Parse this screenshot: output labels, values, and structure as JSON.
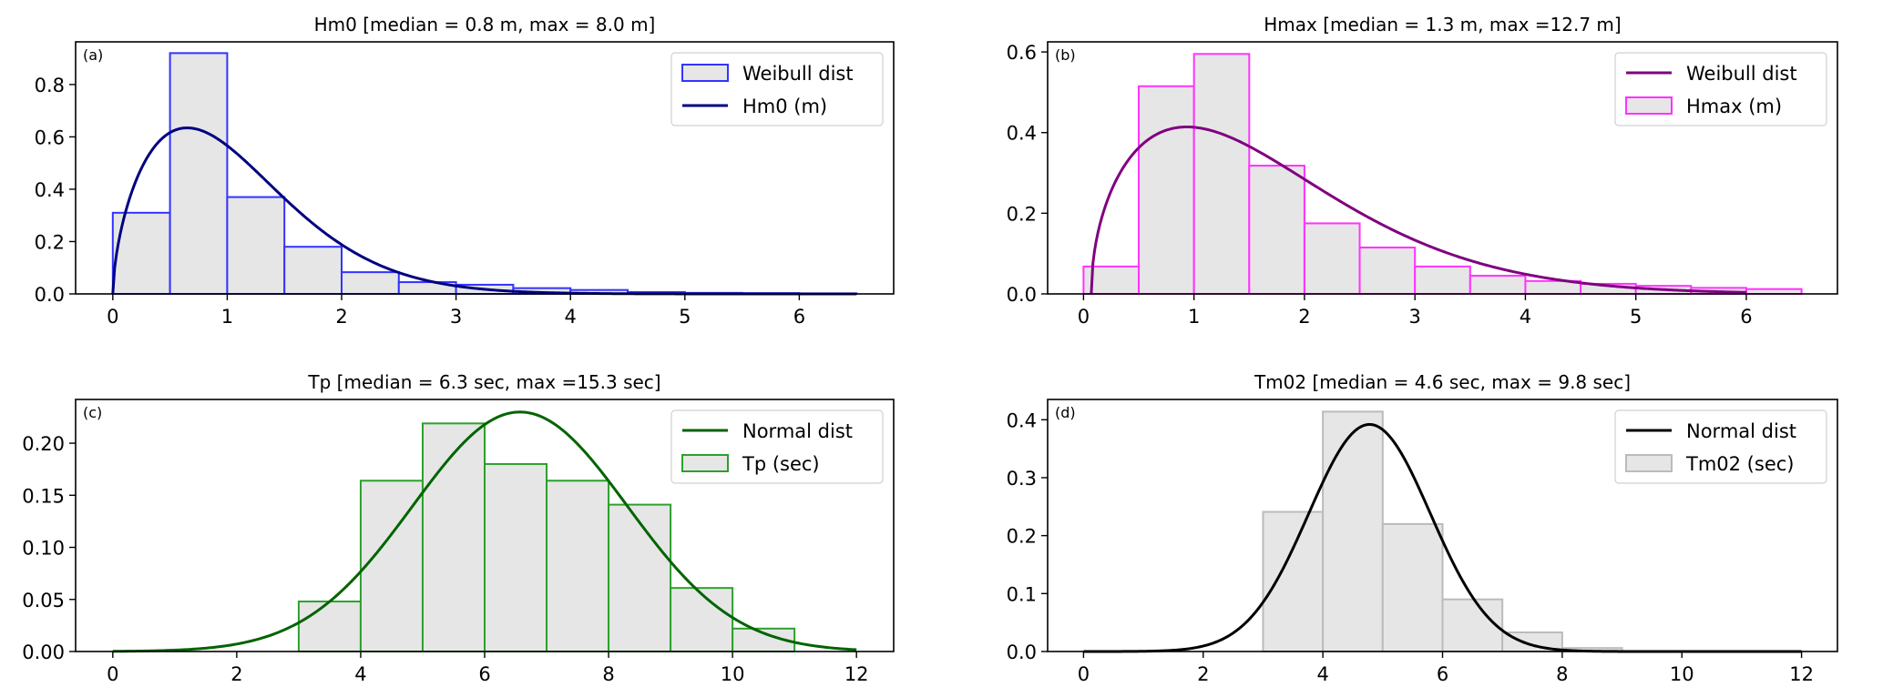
{
  "chart_data": [
    {
      "panel_label": "(a)",
      "type": "bar",
      "title": "Hm0 [median = 0.8 m, max = 8.0 m]",
      "xlim": [
        -0.325,
        6.825
      ],
      "ylim": [
        0,
        0.963
      ],
      "xticks": [
        0,
        1,
        2,
        3,
        4,
        5,
        6
      ],
      "xtick_labels": [
        "0",
        "1",
        "2",
        "3",
        "4",
        "5",
        "6"
      ],
      "yticks": [
        0,
        0.2,
        0.4,
        0.6,
        0.8
      ],
      "ytick_labels": [
        "0.0",
        "0.2",
        "0.4",
        "0.6",
        "0.8"
      ],
      "grid": false,
      "histogram": {
        "name": "Weibull dist",
        "bin_start": 0,
        "bin_width": 0.5,
        "values": [
          0.31,
          0.92,
          0.37,
          0.18,
          0.083,
          0.045,
          0.035,
          0.022,
          0.015,
          0.007,
          0.004,
          0.003,
          0.002
        ],
        "face_color": "#e6e6e6",
        "edge_color": "#3333ff"
      },
      "curve": {
        "name": "Hm0 (m)",
        "dist": "weibull",
        "shape": 1.6,
        "scale": 1.2,
        "loc": 0,
        "x_range": [
          0,
          6.5
        ],
        "color": "#000080"
      },
      "legend": {
        "placement": "top-right",
        "order": [
          "histogram",
          "curve"
        ]
      }
    },
    {
      "panel_label": "(b)",
      "type": "bar",
      "title": "Hmax [median = 1.3 m, max =12.7 m]",
      "xlim": [
        -0.325,
        6.825
      ],
      "ylim": [
        0,
        0.625
      ],
      "xticks": [
        0,
        1,
        2,
        3,
        4,
        5,
        6
      ],
      "xtick_labels": [
        "0",
        "1",
        "2",
        "3",
        "4",
        "5",
        "6"
      ],
      "yticks": [
        0,
        0.2,
        0.4,
        0.6
      ],
      "ytick_labels": [
        "0.0",
        "0.2",
        "0.4",
        "0.6"
      ],
      "grid": false,
      "histogram": {
        "name": "Hmax (m)",
        "bin_start": 0,
        "bin_width": 0.5,
        "values": [
          0.068,
          0.515,
          0.595,
          0.318,
          0.175,
          0.115,
          0.068,
          0.045,
          0.032,
          0.025,
          0.02,
          0.015,
          0.012
        ],
        "face_color": "#e6e6e6",
        "edge_color": "#ff33ff"
      },
      "curve": {
        "name": "Weibull dist",
        "dist": "weibull",
        "shape": 1.5,
        "scale": 1.8,
        "loc": 0.07,
        "x_range": [
          0.07,
          6
        ],
        "color": "#800080"
      },
      "legend": {
        "placement": "top-right",
        "order": [
          "curve",
          "histogram"
        ]
      }
    },
    {
      "panel_label": "(c)",
      "type": "bar",
      "title": "Tp [median = 6.3 sec, max =15.3 sec]",
      "xlim": [
        -0.6,
        12.6
      ],
      "ylim": [
        0,
        0.242
      ],
      "xticks": [
        0,
        2,
        4,
        6,
        8,
        10,
        12
      ],
      "xtick_labels": [
        "0",
        "2",
        "4",
        "6",
        "8",
        "10",
        "12"
      ],
      "yticks": [
        0,
        0.05,
        0.1,
        0.15,
        0.2
      ],
      "ytick_labels": [
        "0.00",
        "0.05",
        "0.10",
        "0.15",
        "0.20"
      ],
      "grid": false,
      "histogram": {
        "name": "Tp (sec)",
        "bin_start": 3,
        "bin_width": 1,
        "values": [
          0.048,
          0.164,
          0.219,
          0.18,
          0.164,
          0.141,
          0.061,
          0.022
        ],
        "face_color": "#e6e6e6",
        "edge_color": "#2ca02c"
      },
      "curve": {
        "name": "Normal dist",
        "dist": "normal",
        "mean": 6.57,
        "std": 1.735,
        "x_range": [
          0,
          12
        ],
        "color": "#006400"
      },
      "legend": {
        "placement": "top-right",
        "order": [
          "curve",
          "histogram"
        ]
      }
    },
    {
      "panel_label": "(d)",
      "type": "bar",
      "title": "Tm02 [median = 4.6 sec, max = 9.8 sec]",
      "xlim": [
        -0.6,
        12.6
      ],
      "ylim": [
        0,
        0.435
      ],
      "xticks": [
        0,
        2,
        4,
        6,
        8,
        10,
        12
      ],
      "xtick_labels": [
        "0",
        "2",
        "4",
        "6",
        "8",
        "10",
        "12"
      ],
      "yticks": [
        0,
        0.1,
        0.2,
        0.3,
        0.4
      ],
      "ytick_labels": [
        "0.0",
        "0.1",
        "0.2",
        "0.3",
        "0.4"
      ],
      "grid": false,
      "histogram": {
        "name": "Tm02 (sec)",
        "bin_start": 3,
        "bin_width": 1,
        "values": [
          0.241,
          0.414,
          0.22,
          0.09,
          0.033,
          0.006
        ],
        "face_color": "#e6e6e6",
        "edge_color": "#bbbbbb"
      },
      "curve": {
        "name": "Normal dist",
        "dist": "normal",
        "mean": 4.78,
        "std": 1.018,
        "x_range": [
          0,
          12
        ],
        "color": "#000000"
      },
      "legend": {
        "placement": "top-right",
        "order": [
          "curve",
          "histogram"
        ]
      }
    }
  ]
}
